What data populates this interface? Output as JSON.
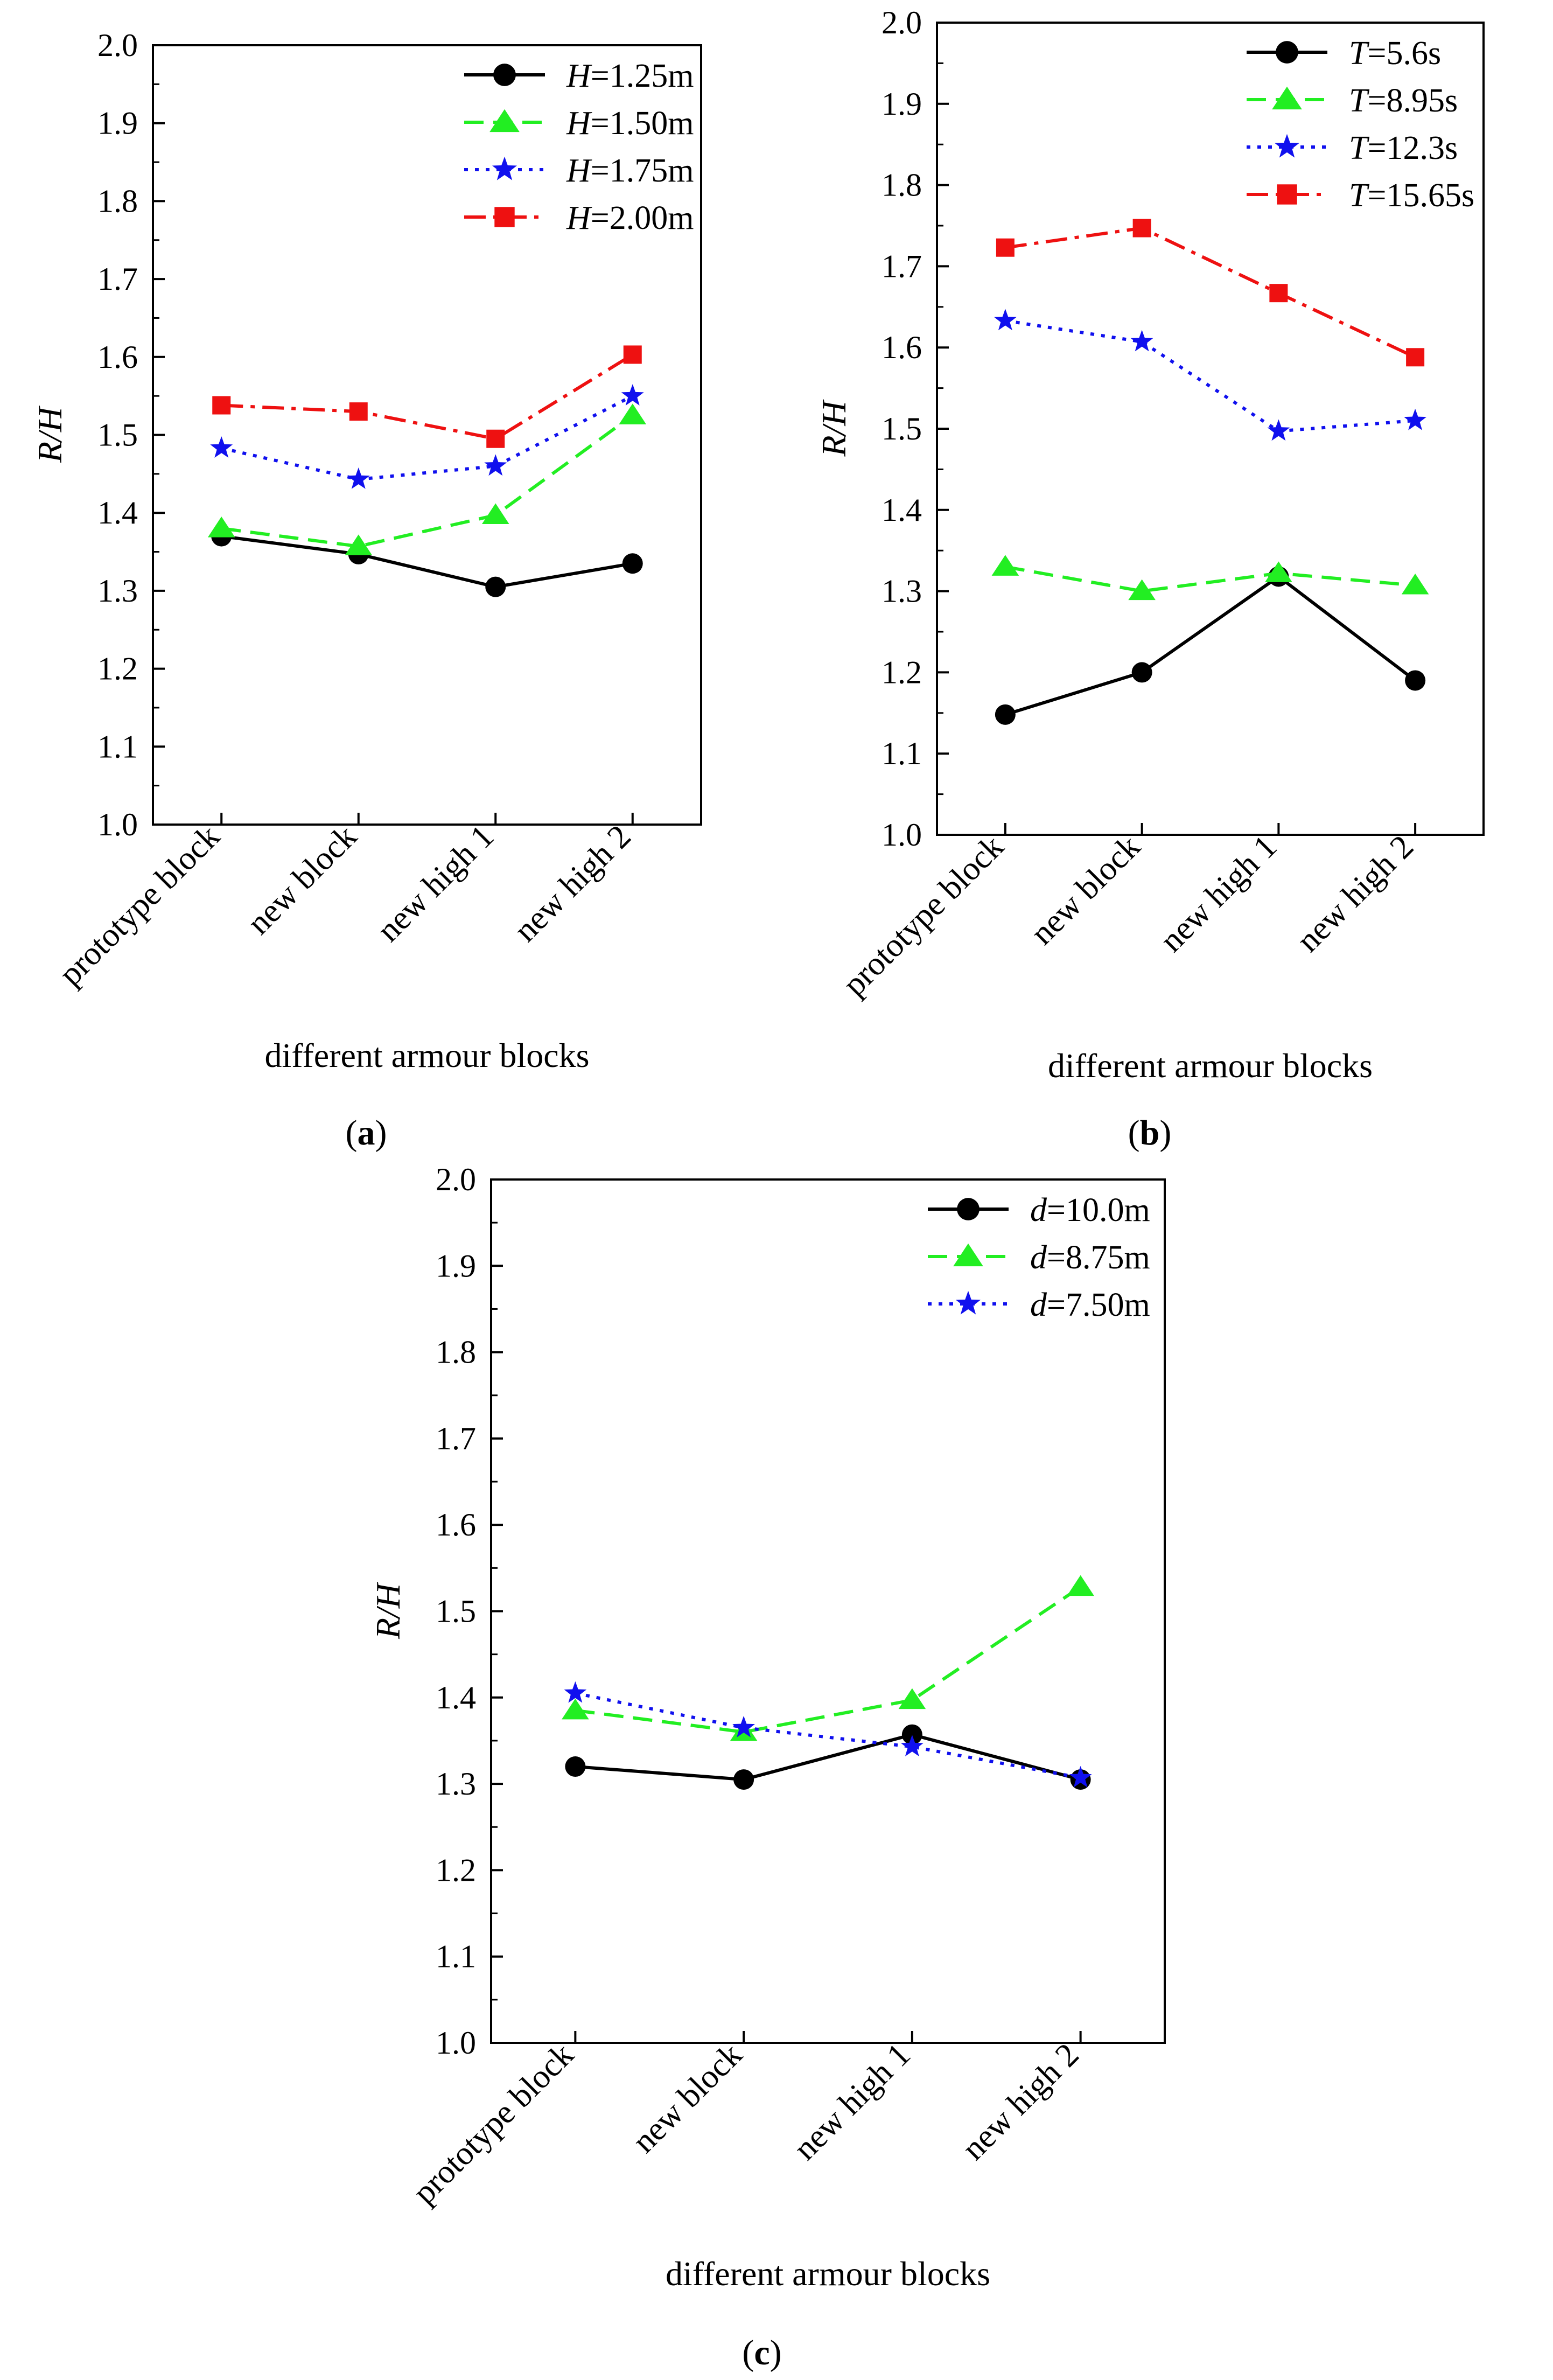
{
  "chart_data": [
    {
      "type": "line",
      "panel_label": "(a)",
      "xlabel": "different armour blocks",
      "ylabel": "R/H",
      "ylim": [
        1.0,
        2.0
      ],
      "yticks": [
        "1.0",
        "1.1",
        "1.2",
        "1.3",
        "1.4",
        "1.5",
        "1.6",
        "1.7",
        "1.8",
        "1.9",
        "2.0"
      ],
      "categories": [
        "prototype block",
        "new block",
        "new high 1",
        "new high 2"
      ],
      "legend_position": "top-right",
      "series": [
        {
          "symbol": "H",
          "rest": "=1.25m",
          "style": "solid",
          "marker": "circle",
          "color": "#000000",
          "values": [
            1.37,
            1.347,
            1.305,
            1.335
          ]
        },
        {
          "symbol": "H",
          "rest": "=1.50m",
          "style": "dash",
          "marker": "triangle",
          "color": "#22ee22",
          "values": [
            1.38,
            1.357,
            1.397,
            1.525
          ]
        },
        {
          "symbol": "H",
          "rest": "=1.75m",
          "style": "dot",
          "marker": "star",
          "color": "#1010ee",
          "values": [
            1.483,
            1.443,
            1.46,
            1.55
          ]
        },
        {
          "symbol": "H",
          "rest": "=2.00m",
          "style": "dashdot",
          "marker": "square",
          "color": "#ee1111",
          "values": [
            1.538,
            1.53,
            1.495,
            1.603
          ]
        }
      ]
    },
    {
      "type": "line",
      "panel_label": "(b)",
      "xlabel": "different armour blocks",
      "ylabel": "R/H",
      "ylim": [
        1.0,
        2.0
      ],
      "yticks": [
        "1.0",
        "1.1",
        "1.2",
        "1.3",
        "1.4",
        "1.5",
        "1.6",
        "1.7",
        "1.8",
        "1.9",
        "2.0"
      ],
      "categories": [
        "prototype block",
        "new block",
        "new high 1",
        "new high 2"
      ],
      "legend_position": "top-right",
      "series": [
        {
          "symbol": "T",
          "rest": "=5.6s",
          "style": "solid",
          "marker": "circle",
          "color": "#000000",
          "values": [
            1.148,
            1.2,
            1.318,
            1.19
          ]
        },
        {
          "symbol": "T",
          "rest": "=8.95s",
          "style": "dash",
          "marker": "triangle",
          "color": "#22ee22",
          "values": [
            1.33,
            1.3,
            1.322,
            1.307
          ]
        },
        {
          "symbol": "T",
          "rest": "=12.3s",
          "style": "dot",
          "marker": "star",
          "color": "#1010ee",
          "values": [
            1.633,
            1.607,
            1.497,
            1.51
          ]
        },
        {
          "symbol": "T",
          "rest": "=15.65s",
          "style": "dashdot",
          "marker": "square",
          "color": "#ee1111",
          "values": [
            1.723,
            1.747,
            1.667,
            1.588
          ]
        }
      ]
    },
    {
      "type": "line",
      "panel_label": "(c)",
      "xlabel": "different armour blocks",
      "ylabel": "R/H",
      "ylim": [
        1.0,
        2.0
      ],
      "yticks": [
        "1.0",
        "1.1",
        "1.2",
        "1.3",
        "1.4",
        "1.5",
        "1.6",
        "1.7",
        "1.8",
        "1.9",
        "2.0"
      ],
      "categories": [
        "prototype block",
        "new block",
        "new high 1",
        "new high 2"
      ],
      "legend_position": "top-right",
      "series": [
        {
          "symbol": "d",
          "rest": "=10.0m",
          "style": "solid",
          "marker": "circle",
          "color": "#000000",
          "values": [
            1.32,
            1.305,
            1.357,
            1.305
          ]
        },
        {
          "symbol": "d",
          "rest": "=8.75m",
          "style": "dash",
          "marker": "triangle",
          "color": "#22ee22",
          "values": [
            1.385,
            1.36,
            1.397,
            1.528
          ]
        },
        {
          "symbol": "d",
          "rest": "=7.50m",
          "style": "dot",
          "marker": "star",
          "color": "#1010ee",
          "values": [
            1.405,
            1.365,
            1.343,
            1.307
          ]
        }
      ]
    }
  ]
}
